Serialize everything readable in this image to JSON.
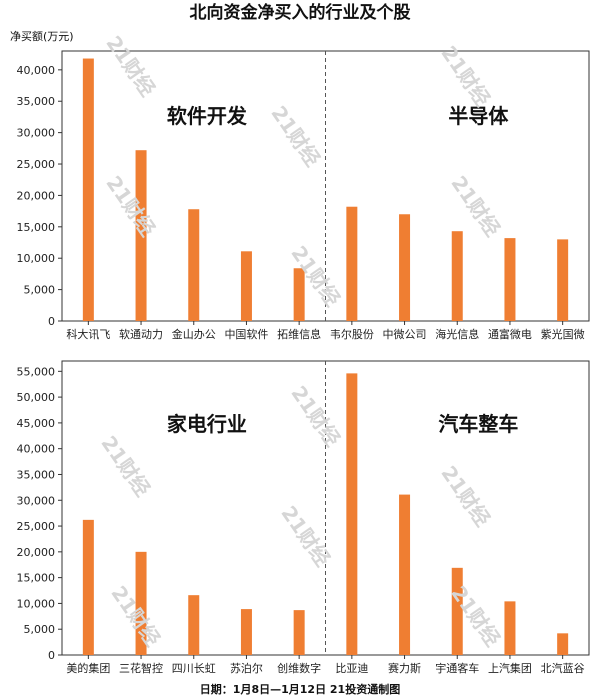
{
  "title": "北向资金净买入的行业及个股",
  "ylabel": "净买额(万元)",
  "footer": "日期：1月8日—1月12日 21投资通制图",
  "watermark": "21财经",
  "colors": {
    "bar": "#ef7e32",
    "axis": "#333333",
    "divider": "#555555"
  },
  "chart_data": [
    {
      "type": "bar",
      "ylabel": "净买额(万元)",
      "ylim": [
        0,
        43000
      ],
      "yticks": [
        0,
        5000,
        10000,
        15000,
        20000,
        25000,
        30000,
        35000,
        40000
      ],
      "groups": [
        {
          "name": "软件开发",
          "categories": [
            "科大讯飞",
            "软通动力",
            "金山办公",
            "中国软件",
            "拓维信息"
          ],
          "values": [
            41800,
            27200,
            17800,
            11100,
            8400
          ]
        },
        {
          "name": "半导体",
          "categories": [
            "韦尔股份",
            "中微公司",
            "海光信息",
            "通富微电",
            "紫光国微"
          ],
          "values": [
            18200,
            17000,
            14300,
            13200,
            13000
          ]
        }
      ]
    },
    {
      "type": "bar",
      "ylabel": "",
      "ylim": [
        0,
        57000
      ],
      "yticks": [
        0,
        5000,
        10000,
        15000,
        20000,
        25000,
        30000,
        35000,
        40000,
        45000,
        50000,
        55000
      ],
      "groups": [
        {
          "name": "家电行业",
          "categories": [
            "美的集团",
            "三花智控",
            "四川长虹",
            "苏泊尔",
            "创维数字"
          ],
          "values": [
            26200,
            20000,
            11600,
            8900,
            8700
          ]
        },
        {
          "name": "汽车整车",
          "categories": [
            "比亚迪",
            "赛力斯",
            "宇通客车",
            "上汽集团",
            "北汽蓝谷"
          ],
          "values": [
            54600,
            31100,
            16900,
            10400,
            4200
          ]
        }
      ]
    }
  ]
}
